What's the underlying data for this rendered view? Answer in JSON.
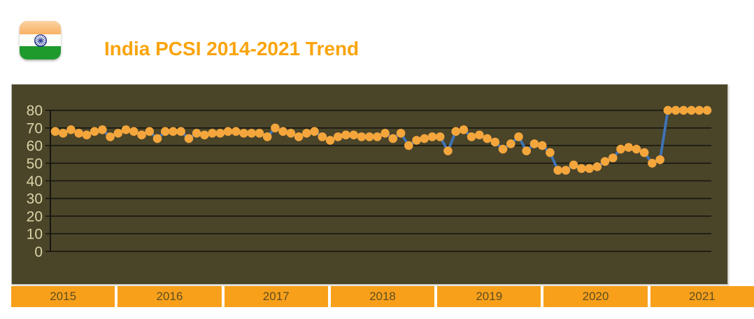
{
  "header": {
    "title": "India PCSI 2014-2021 Trend",
    "title_color": "#FAA40E",
    "flag_icon": "india-flag-icon"
  },
  "chart_data": {
    "type": "line",
    "title": "India PCSI 2014-2021 Trend",
    "frequency": "monthly",
    "x_start_year": 2014,
    "x_axis_year_labels": [
      "2015",
      "2016",
      "2017",
      "2018",
      "2019",
      "2020",
      "2021"
    ],
    "y_axis": {
      "ticks": [
        0,
        10,
        20,
        30,
        40,
        50,
        60,
        70,
        80
      ],
      "range": [
        0,
        80
      ]
    },
    "grid": true,
    "legend": false,
    "series": [
      {
        "name": "PCSI",
        "values": [
          68,
          67,
          69,
          67,
          66,
          68,
          69,
          65,
          67,
          69,
          68,
          66,
          68,
          64,
          68,
          68,
          68,
          64,
          67,
          66,
          67,
          67,
          68,
          68,
          67,
          67,
          67,
          65,
          70,
          68,
          67,
          65,
          67,
          68,
          65,
          63,
          65,
          66,
          66,
          65,
          65,
          65,
          67,
          64,
          67,
          60,
          63,
          64,
          65,
          65,
          57,
          68,
          69,
          65,
          66,
          64,
          62,
          58,
          61,
          65,
          57,
          61,
          60,
          56,
          46,
          46,
          49,
          47,
          47,
          48,
          51,
          53,
          58,
          59,
          58,
          56,
          50,
          52,
          80,
          80,
          80,
          80,
          80,
          80
        ]
      }
    ],
    "colors": {
      "point": "#F4A63C",
      "line": "#3E74B8",
      "plot_background": "#4A4429",
      "gridline": "#161610",
      "tick_label": "#D8D4A6",
      "year_band_background": "#F9A01B",
      "year_band_text": "#5E4F1E"
    }
  }
}
